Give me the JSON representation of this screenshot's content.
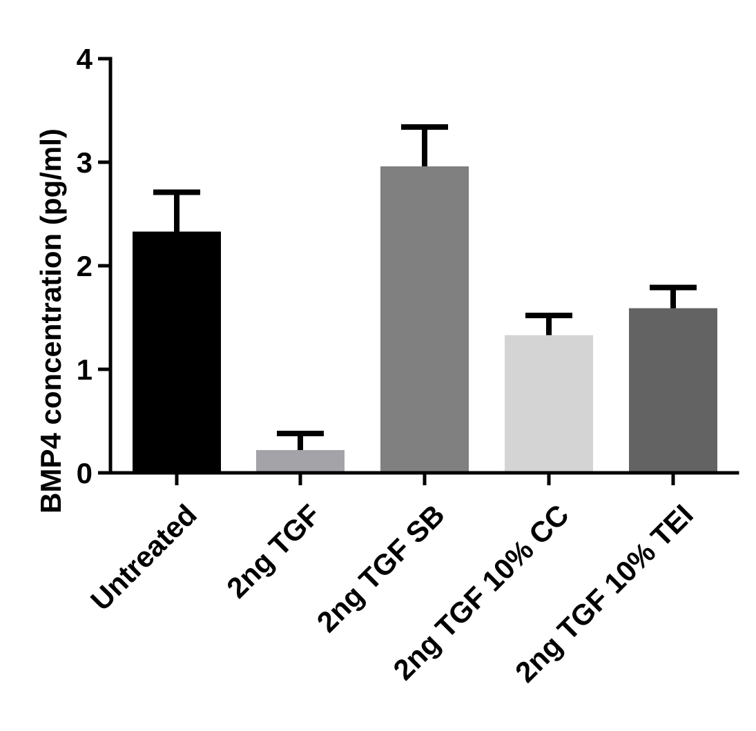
{
  "chart_data": {
    "type": "bar",
    "title": "",
    "xlabel": "",
    "ylabel": "BMP4 concentration (pg/ml)",
    "ylim": [
      0,
      4
    ],
    "yticks": [
      0,
      1,
      2,
      3,
      4
    ],
    "grid": false,
    "legend": "none",
    "categories": [
      "Untreated",
      "2ng TGF",
      "2ng TGF SB",
      "2ng TGF 10% CC",
      "2ng TGF 10% TEI"
    ],
    "values": [
      2.33,
      0.22,
      2.96,
      1.33,
      1.59
    ],
    "error_upper": [
      0.38,
      0.16,
      0.38,
      0.19,
      0.2
    ],
    "colors": [
      "#000000",
      "#a3a3a8",
      "#808080",
      "#d4d4d4",
      "#636363"
    ]
  }
}
